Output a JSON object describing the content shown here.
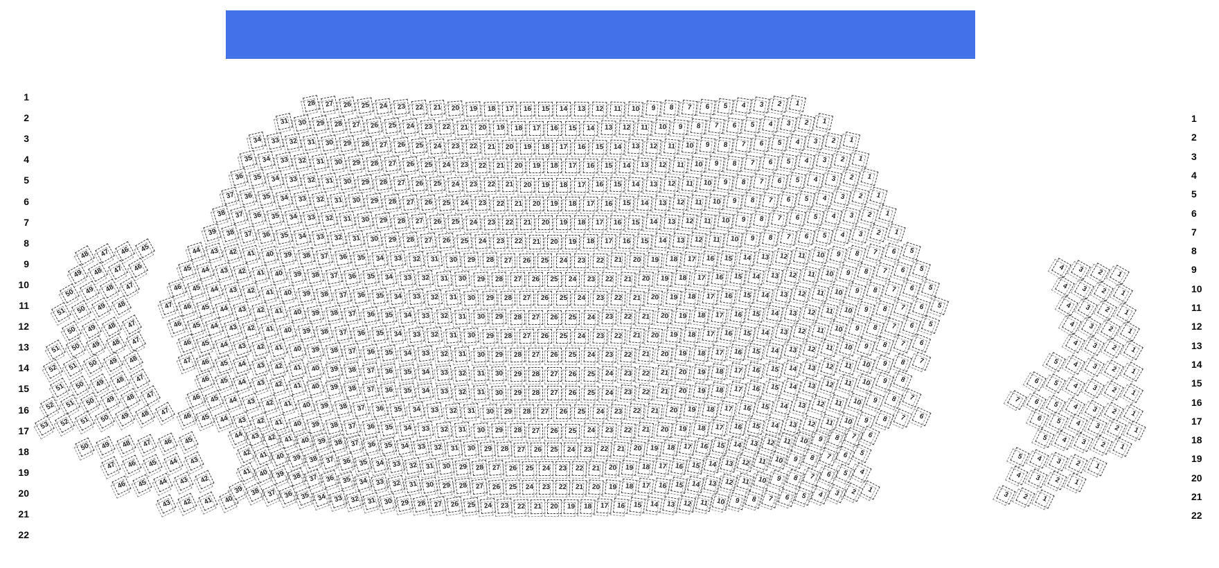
{
  "stage": {
    "color": "#4372e8"
  },
  "row_labels_left": [
    "1",
    "2",
    "3",
    "4",
    "5",
    "6",
    "7",
    "8",
    "9",
    "10",
    "11",
    "12",
    "13",
    "14",
    "15",
    "16",
    "17",
    "18",
    "19",
    "20",
    "21",
    "22"
  ],
  "row_labels_right": [
    "1",
    "2",
    "3",
    "4",
    "5",
    "6",
    "7",
    "8",
    "9",
    "10",
    "11",
    "12",
    "13",
    "14",
    "15",
    "16",
    "17",
    "18",
    "19",
    "20",
    "21",
    "22"
  ],
  "sections": {
    "left_bank": {
      "rows": [
        {
          "row": 9,
          "from": 48,
          "to": 45
        },
        {
          "row": 10,
          "from": 49,
          "to": 46
        },
        {
          "row": 11,
          "from": 50,
          "to": 47
        },
        {
          "row": 12,
          "from": 51,
          "to": 48
        },
        {
          "row": 13,
          "from": 50,
          "to": 47
        },
        {
          "row": 14,
          "from": 51,
          "to": 47
        },
        {
          "row": 15,
          "from": 52,
          "to": 48
        },
        {
          "row": 16,
          "from": 51,
          "to": 47
        },
        {
          "row": 17,
          "from": 52,
          "to": 47
        },
        {
          "row": 18,
          "from": 53,
          "to": 47
        },
        {
          "row": 19,
          "from": 50,
          "to": 45
        },
        {
          "row": 20,
          "from": 47,
          "to": 43
        },
        {
          "row": 21,
          "from": 46,
          "to": 42
        },
        {
          "row": 22,
          "from": 43,
          "to": 40
        }
      ]
    },
    "center": {
      "rows": [
        {
          "row": 1,
          "from": 28,
          "to": 1
        },
        {
          "row": 2,
          "from": 31,
          "to": 1
        },
        {
          "row": 3,
          "from": 34,
          "to": 1
        },
        {
          "row": 4,
          "from": 35,
          "to": 1
        },
        {
          "row": 5,
          "from": 36,
          "to": 1
        },
        {
          "row": 6,
          "from": 37,
          "to": 1
        },
        {
          "row": 7,
          "from": 38,
          "to": 1
        },
        {
          "row": 8,
          "from": 39,
          "to": 1
        },
        {
          "row": 9,
          "from": 44,
          "to": 5
        },
        {
          "row": 10,
          "from": 45,
          "to": 5
        },
        {
          "row": 11,
          "from": 46,
          "to": 5
        },
        {
          "row": 12,
          "from": 47,
          "to": 5
        },
        {
          "row": 13,
          "from": 46,
          "to": 5
        },
        {
          "row": 14,
          "from": 46,
          "to": 6
        },
        {
          "row": 15,
          "from": 47,
          "to": 7
        },
        {
          "row": 16,
          "from": 46,
          "to": 8
        },
        {
          "row": 17,
          "from": 46,
          "to": 7
        },
        {
          "row": 18,
          "from": 46,
          "to": 6
        },
        {
          "row": 19,
          "from": 44,
          "to": 6
        },
        {
          "row": 20,
          "from": 42,
          "to": 5
        },
        {
          "row": 21,
          "from": 41,
          "to": 4
        },
        {
          "row": 22,
          "from": 39,
          "to": 1
        }
      ]
    },
    "right_bank": {
      "rows": [
        {
          "row": 9,
          "from": 4,
          "to": 1
        },
        {
          "row": 10,
          "from": 4,
          "to": 1
        },
        {
          "row": 11,
          "from": 4,
          "to": 1
        },
        {
          "row": 12,
          "from": 4,
          "to": 1
        },
        {
          "row": 13,
          "from": 4,
          "to": 1
        },
        {
          "row": 14,
          "from": 5,
          "to": 1
        },
        {
          "row": 15,
          "from": 6,
          "to": 1
        },
        {
          "row": 16,
          "from": 7,
          "to": 1
        },
        {
          "row": 17,
          "from": 6,
          "to": 1
        },
        {
          "row": 18,
          "from": 5,
          "to": 1
        },
        {
          "row": 19,
          "from": 5,
          "to": 1
        },
        {
          "row": 20,
          "from": 4,
          "to": 1
        },
        {
          "row": 21,
          "from": 3,
          "to": 1
        }
      ]
    }
  },
  "colors": {
    "seat_border": "#3d3d3d",
    "seat_shadow_border": "#8f8f8f",
    "seat_text": "#222222",
    "label_text": "#0a0a0a"
  }
}
